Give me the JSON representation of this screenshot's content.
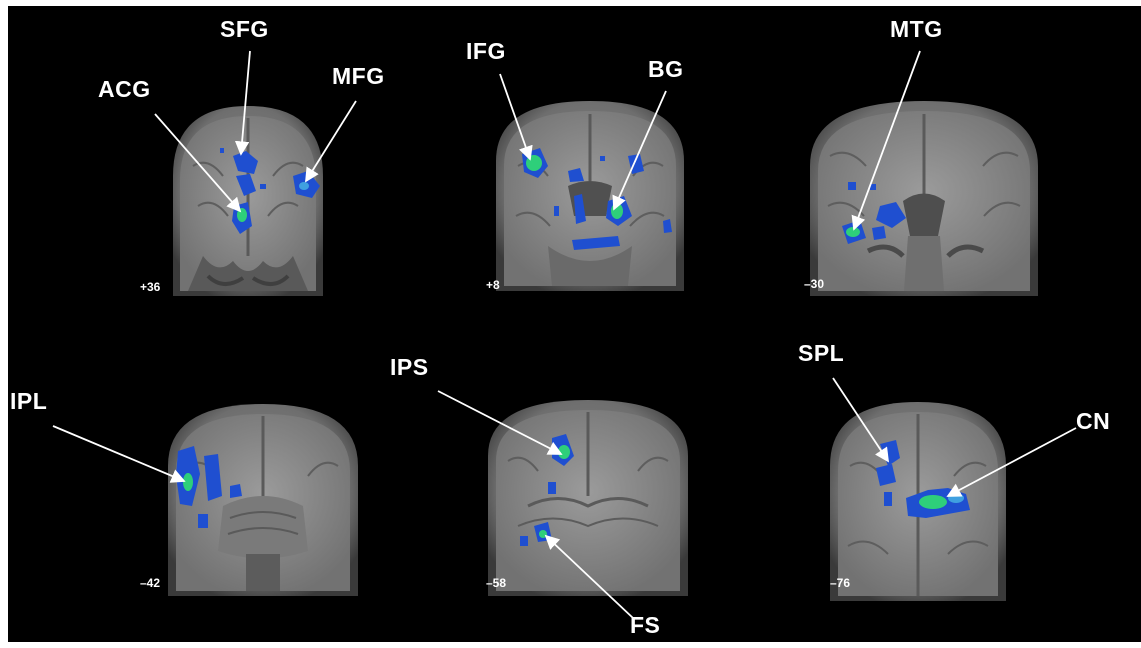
{
  "slices": [
    {
      "label": "+36",
      "regions": [
        "SFG",
        "ACG",
        "MFG"
      ]
    },
    {
      "label": "+8",
      "regions": [
        "IFG",
        "BG"
      ]
    },
    {
      "label": "–30",
      "regions": [
        "MTG"
      ]
    },
    {
      "label": "–42",
      "regions": [
        "IPL"
      ]
    },
    {
      "label": "–58",
      "regions": [
        "IPS",
        "FS"
      ]
    },
    {
      "label": "–76",
      "regions": [
        "SPL",
        "CN"
      ]
    }
  ],
  "colors": {
    "background": "#000000",
    "activation_blue": "#1f4fd0",
    "activation_green": "#2ecf7a",
    "annotation": "#ffffff"
  }
}
